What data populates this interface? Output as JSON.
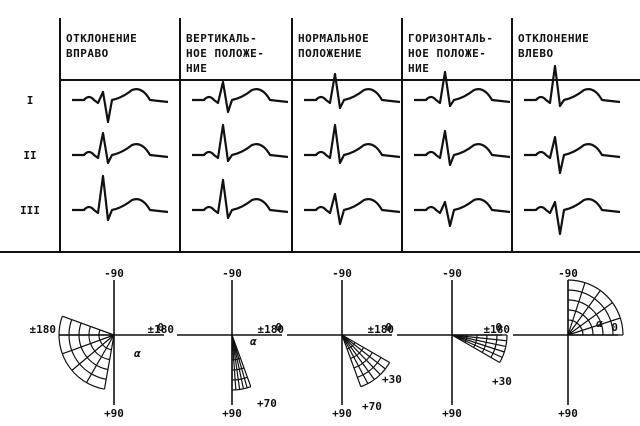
{
  "header": {
    "columns": [
      [
        "ОТКЛОНЕНИЕ",
        "ВПРАВО"
      ],
      [
        "ВЕРТИКАЛЬ-",
        "НОЕ ПОЛОЖЕ-",
        "НИЕ"
      ],
      [
        "НОРМАЛЬНОЕ",
        "ПОЛОЖЕНИЕ"
      ],
      [
        "ГОРИЗОНТАЛЬ-",
        "НОЕ ПОЛОЖЕ-",
        "НИЕ"
      ],
      [
        "ОТКЛОНЕНИЕ",
        "ВЛЕВО"
      ]
    ]
  },
  "leads": [
    "I",
    "II",
    "III"
  ],
  "axes": [
    {
      "top": "-90",
      "left": "±180",
      "right": "0",
      "bottom": "+90",
      "angle": "α"
    },
    {
      "top": "-90",
      "left": "±180",
      "right": "0",
      "bottom": "+90",
      "angle": "α",
      "marks": [
        "+70"
      ]
    },
    {
      "top": "-90",
      "left": "±180",
      "right": "0",
      "bottom": "+90",
      "marks": [
        "+30",
        "+70"
      ]
    },
    {
      "top": "-90",
      "left": "±180",
      "right": "0",
      "bottom": "+90",
      "marks": [
        "+30"
      ]
    },
    {
      "top": "-90",
      "left": "±180",
      "right": "0",
      "bottom": "+90",
      "angle": "α"
    }
  ]
}
